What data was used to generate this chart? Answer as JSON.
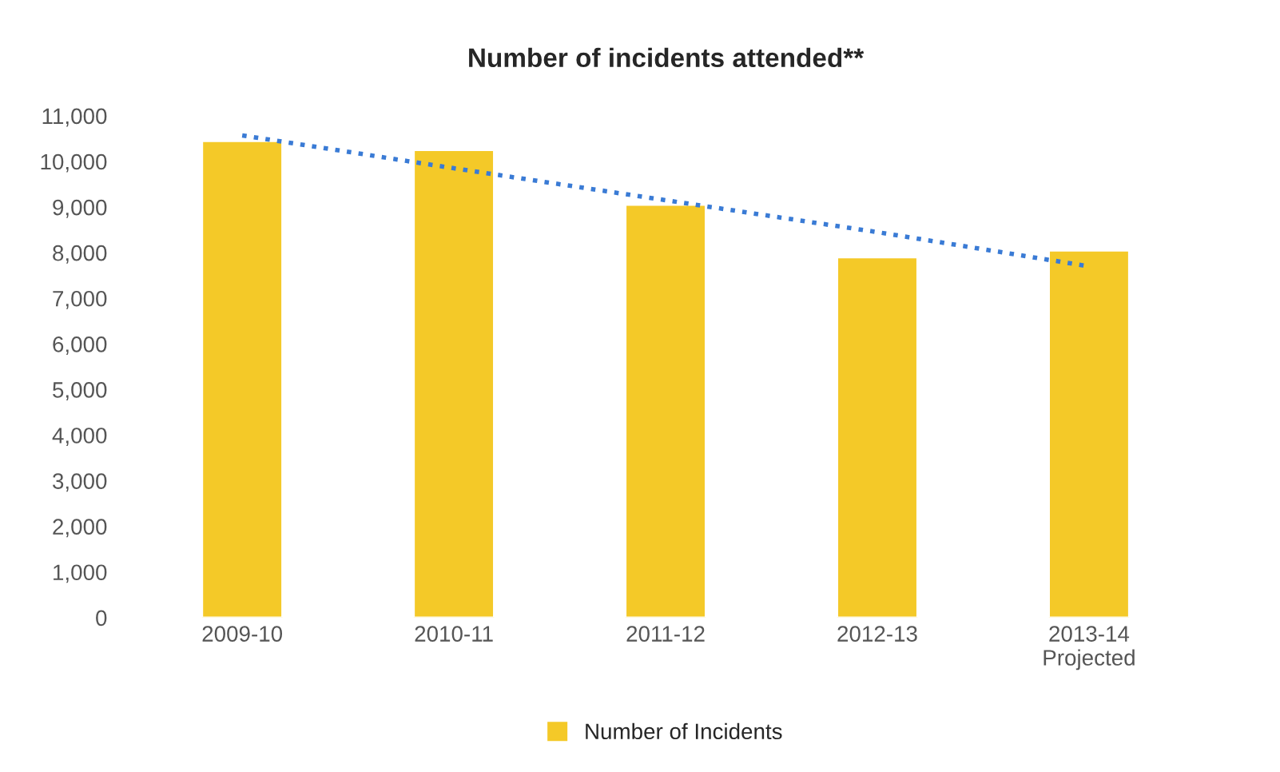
{
  "chart_data": {
    "type": "bar",
    "title": "Number of incidents attended**",
    "categories": [
      "2009-10",
      "2010-11",
      "2011-12",
      "2012-13",
      "2013-14\nProjected"
    ],
    "series": [
      {
        "name": "Number of Incidents",
        "color": "#f4c928",
        "values": [
          10450,
          10250,
          9050,
          7900,
          8050
        ]
      },
      {
        "type": "line",
        "color": "#3a7bd5",
        "line_style": "dotted",
        "values": [
          10570,
          9850,
          9150,
          8450,
          7700
        ]
      }
    ],
    "ylim": [
      0,
      11000
    ],
    "yticks": [
      0,
      {
        "value": 1000,
        "label": "1,000"
      },
      {
        "value": 2000,
        "label": "2,000"
      },
      {
        "value": 3000,
        "label": "3,000"
      },
      {
        "value": 4000,
        "label": "4,000"
      },
      {
        "value": 5000,
        "label": "5,000"
      },
      {
        "value": 6000,
        "label": "6,000"
      },
      {
        "value": 7000,
        "label": "7,000"
      },
      {
        "value": 8000,
        "label": "8,000"
      },
      {
        "value": 9000,
        "label": "9,000"
      },
      {
        "value": 10000,
        "label": "10,000"
      },
      {
        "value": 11000,
        "label": "11,000"
      }
    ],
    "grid": false,
    "legend": "bottom"
  }
}
